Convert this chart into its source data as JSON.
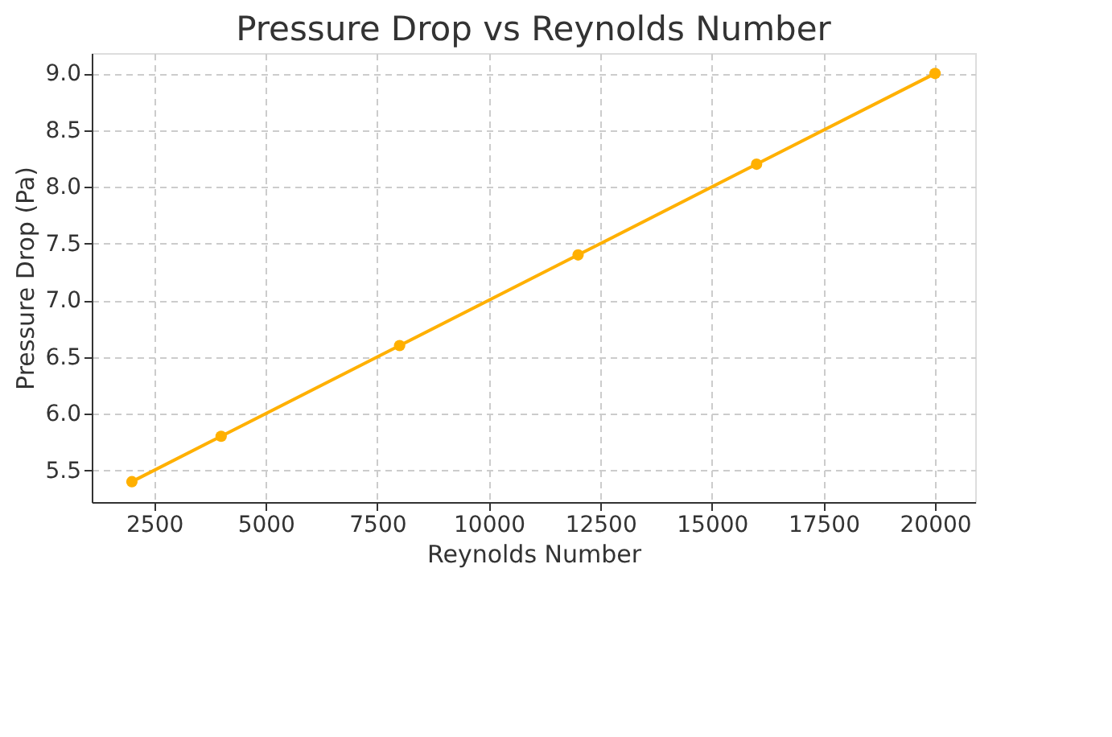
{
  "chart_data": {
    "type": "line",
    "title": "Pressure Drop vs Reynolds Number",
    "xlabel": "Reynolds Number",
    "ylabel": "Pressure Drop (Pa)",
    "x": [
      2000,
      4000,
      8000,
      12000,
      16000,
      20000
    ],
    "series": [
      {
        "color": "#ffb000",
        "values": [
          5.4,
          5.8,
          6.6,
          7.4,
          8.2,
          9.0
        ]
      }
    ],
    "xlim": [
      1100,
      20900
    ],
    "xticks": [
      2500,
      5000,
      7500,
      10000,
      12500,
      15000,
      17500,
      20000
    ],
    "ylim": [
      5.22,
      9.18
    ],
    "yticks": [
      {
        "value": 5.5,
        "label": "5.5"
      },
      {
        "value": 6,
        "label": "6.0"
      },
      {
        "value": 6.5,
        "label": "6.5"
      },
      {
        "value": 7,
        "label": "7.0"
      },
      {
        "value": 7.5,
        "label": "7.5"
      },
      {
        "value": 8,
        "label": "8.0"
      },
      {
        "value": 8.5,
        "label": "8.5"
      },
      {
        "value": 9,
        "label": "9.0"
      }
    ],
    "grid": true,
    "marker": "circle",
    "line_style": "solid"
  }
}
